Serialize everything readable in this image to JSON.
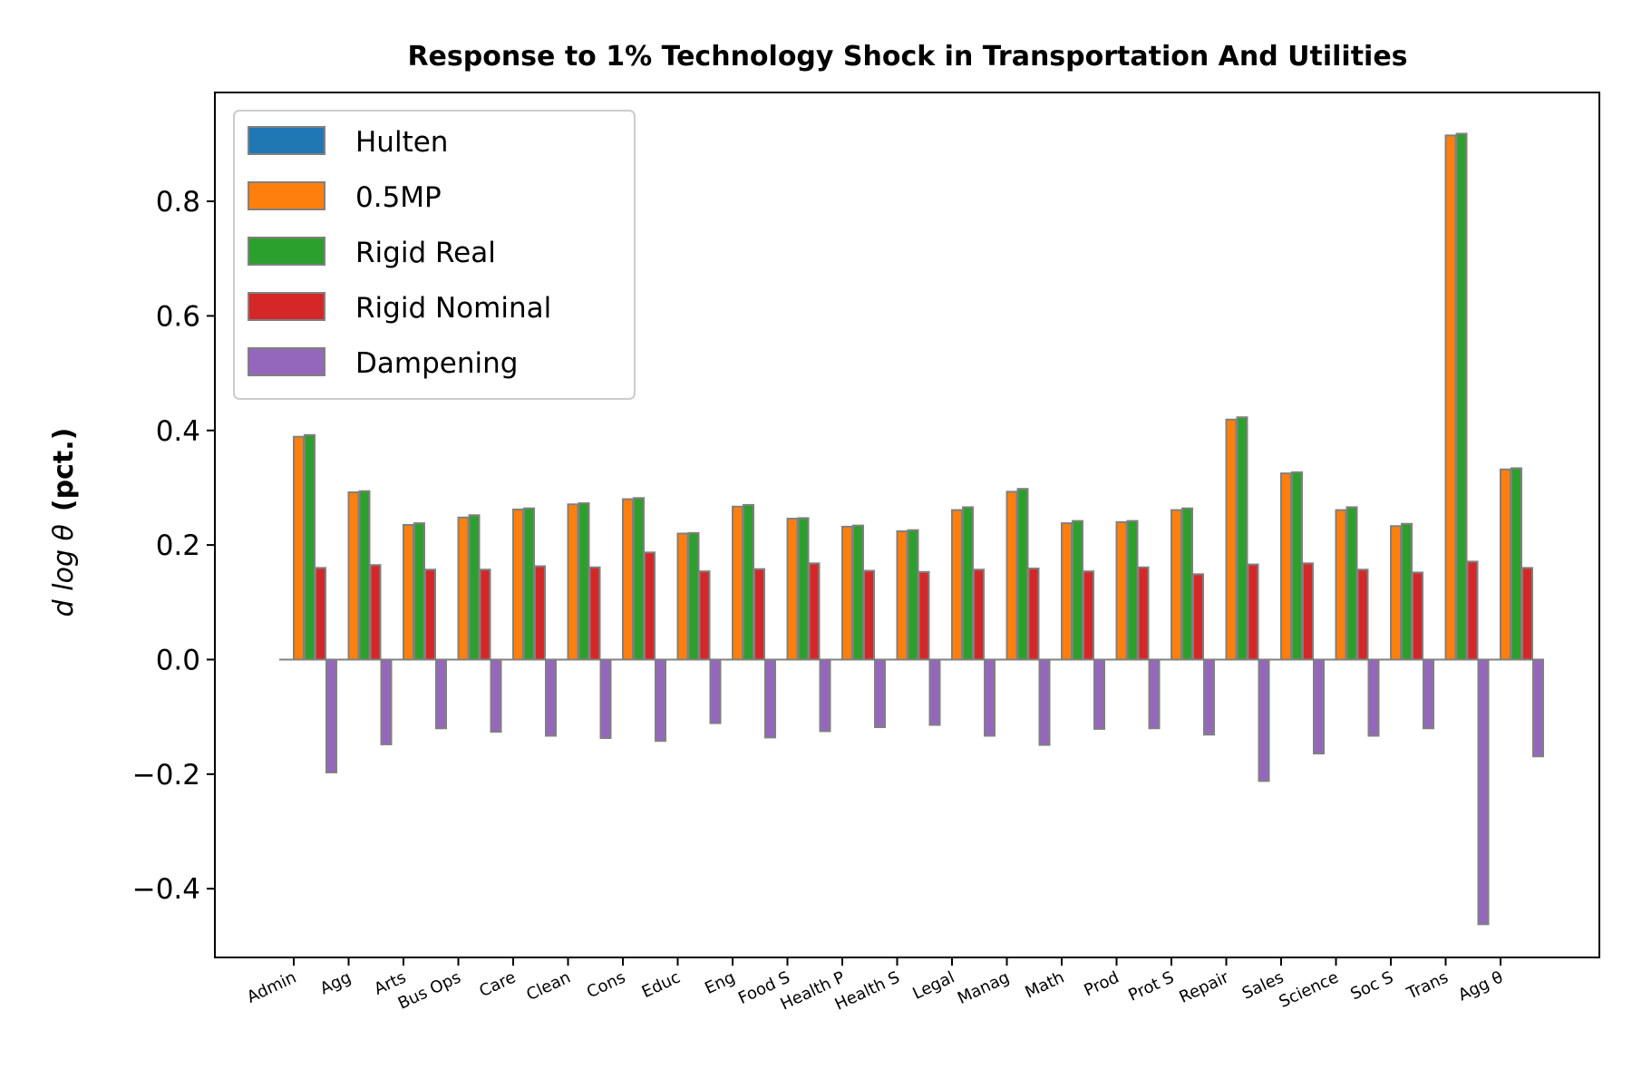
{
  "chart_data": {
    "type": "bar",
    "title": "Response to 1% Technology Shock in Transportation And Utilities",
    "ylabel_math": "d log θ",
    "ylabel_bold": "(pct.)",
    "xlabel": "",
    "ylim": [
      -0.52,
      0.99
    ],
    "yticks": [
      -0.4,
      -0.2,
      0.0,
      0.2,
      0.4,
      0.6,
      0.8
    ],
    "ytick_labels": [
      "−0.4",
      "−0.2",
      "0.0",
      "0.2",
      "0.4",
      "0.6",
      "0.8"
    ],
    "grid": false,
    "legend_position": "top-left",
    "categories": [
      "Admin",
      "Agg",
      "Arts",
      "Bus Ops",
      "Care",
      "Clean",
      "Cons",
      "Educ",
      "Eng",
      "Food S",
      "Health P",
      "Health S",
      "Legal",
      "Manag",
      "Math",
      "Prod",
      "Prot S",
      "Repair",
      "Sales",
      "Science",
      "Soc S",
      "Trans",
      "Agg θ"
    ],
    "series": [
      {
        "name": "Hulten",
        "color": "#1f77b4",
        "values": [
          0,
          0,
          0,
          0,
          0,
          0,
          0,
          0,
          0,
          0,
          0,
          0,
          0,
          0,
          0,
          0,
          0,
          0,
          0,
          0,
          0,
          0,
          0
        ]
      },
      {
        "name": "0.5MP",
        "color": "#ff7f0e",
        "values": [
          0.389,
          0.292,
          0.235,
          0.248,
          0.262,
          0.271,
          0.28,
          0.22,
          0.267,
          0.246,
          0.232,
          0.224,
          0.261,
          0.293,
          0.238,
          0.24,
          0.261,
          0.419,
          0.325,
          0.261,
          0.233,
          0.915,
          0.332
        ]
      },
      {
        "name": "Rigid Real",
        "color": "#2ca02c",
        "values": [
          0.392,
          0.294,
          0.238,
          0.252,
          0.264,
          0.273,
          0.282,
          0.221,
          0.27,
          0.247,
          0.234,
          0.226,
          0.266,
          0.298,
          0.242,
          0.242,
          0.264,
          0.423,
          0.327,
          0.266,
          0.237,
          0.918,
          0.334
        ]
      },
      {
        "name": "Rigid Nominal",
        "color": "#d62728",
        "values": [
          0.16,
          0.165,
          0.157,
          0.157,
          0.163,
          0.161,
          0.187,
          0.154,
          0.158,
          0.168,
          0.155,
          0.153,
          0.157,
          0.159,
          0.154,
          0.161,
          0.149,
          0.166,
          0.168,
          0.157,
          0.152,
          0.171,
          0.16
        ]
      },
      {
        "name": "Dampening",
        "color": "#9467bd",
        "values": [
          -0.197,
          -0.148,
          -0.12,
          -0.126,
          -0.133,
          -0.137,
          -0.142,
          -0.111,
          -0.136,
          -0.125,
          -0.118,
          -0.114,
          -0.133,
          -0.149,
          -0.121,
          -0.12,
          -0.131,
          -0.212,
          -0.164,
          -0.133,
          -0.12,
          -0.462,
          -0.169
        ]
      }
    ]
  }
}
